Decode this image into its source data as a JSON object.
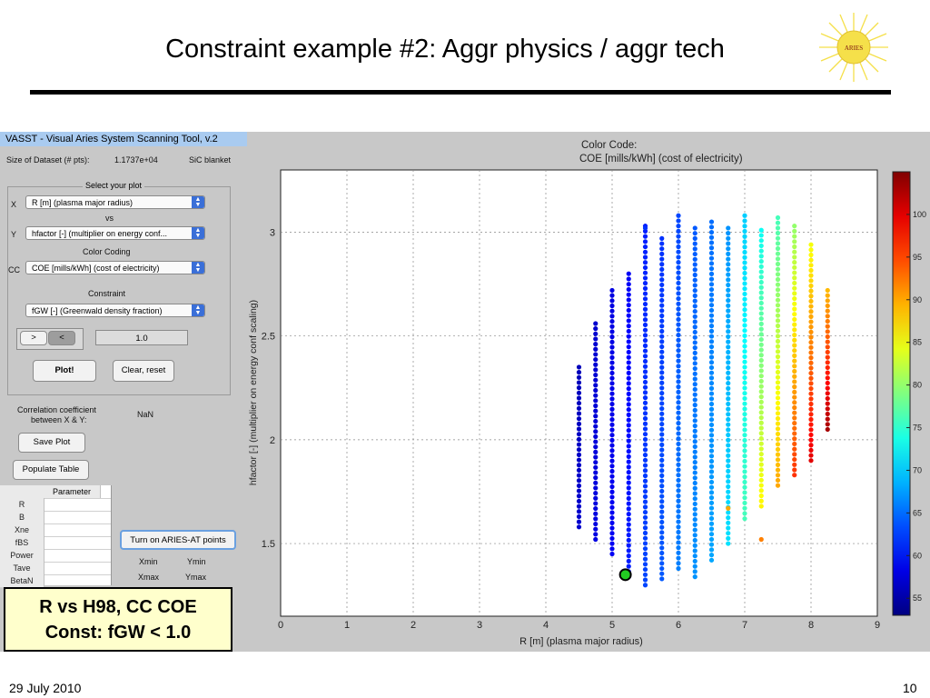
{
  "slide": {
    "title": "Constraint example #2: Aggr physics / aggr tech",
    "logo_text": "ARIES",
    "date": "29 July 2010",
    "page_number": "10",
    "callout_line1": "R vs H98, CC COE",
    "callout_line2": "Const: fGW < 1.0"
  },
  "app": {
    "window_title": "VASST - Visual Aries System Scanning Tool, v.2",
    "dataset_label": "Size of Dataset (# pts):",
    "dataset_value": "1.1737e+04",
    "blanket": "SiC blanket",
    "select_plot_title": "Select your plot",
    "x_label": "X",
    "x_value": "R [m] (plasma major radius)",
    "vs_label": "vs",
    "y_label": "Y",
    "y_value": "hfactor [-] (multiplier on energy conf...",
    "color_coding_label": "Color Coding",
    "cc_label": "CC",
    "cc_value": "COE [mills/kWh] (cost of electricity)",
    "constraint_label": "Constraint",
    "constraint_value": "fGW [-] (Greenwald density fraction)",
    "gt_label": ">",
    "lt_label": "<",
    "constraint_threshold": "1.0",
    "plot_button": "Plot!",
    "clear_button": "Clear, reset",
    "corr_label_1": "Correlation coefficient",
    "corr_label_2": "between X & Y:",
    "corr_value": "NaN",
    "save_plot_button": "Save Plot",
    "populate_table_button": "Populate Table",
    "table_header": "Parameter",
    "table_rows": [
      "R",
      "B",
      "Xne",
      "fBS",
      "Power",
      "Tave",
      "BetaN"
    ],
    "aries_at_button": "Turn on ARIES-AT points",
    "xmin_label": "Xmin",
    "ymin_label": "Ymin",
    "xmax_label": "Xmax",
    "ymax_label": "Ymax"
  },
  "chart_data": {
    "type": "scatter",
    "title": "Color Code:",
    "subtitle": "COE [mills/kWh] (cost of electricity)",
    "xlabel": "R [m] (plasma major radius)",
    "ylabel": "hfactor [-] (multiplier on energy conf scaling)",
    "xlim": [
      0,
      9
    ],
    "ylim": [
      1.15,
      3.3
    ],
    "xticks": [
      0,
      1,
      2,
      3,
      4,
      5,
      6,
      7,
      8,
      9
    ],
    "yticks": [
      1.5,
      2,
      2.5,
      3
    ],
    "grid": true,
    "colorbar": {
      "label": "COE",
      "range": [
        53,
        105
      ],
      "ticks": [
        55,
        60,
        65,
        70,
        75,
        80,
        85,
        90,
        95,
        100
      ]
    },
    "columns": [
      {
        "x": 4.5,
        "ymin": 1.58,
        "ymax": 2.35,
        "coe_low": 56,
        "coe_high": 57
      },
      {
        "x": 4.75,
        "ymin": 1.52,
        "ymax": 2.56,
        "coe_low": 57,
        "coe_high": 58
      },
      {
        "x": 5.0,
        "ymin": 1.45,
        "ymax": 2.72,
        "coe_low": 58,
        "coe_high": 59
      },
      {
        "x": 5.25,
        "ymin": 1.34,
        "ymax": 2.8,
        "coe_low": 59,
        "coe_high": 61
      },
      {
        "x": 5.5,
        "ymin": 1.3,
        "ymax": 3.03,
        "coe_low": 61,
        "coe_high": 63
      },
      {
        "x": 5.75,
        "ymin": 1.33,
        "ymax": 2.97,
        "coe_low": 62,
        "coe_high": 64
      },
      {
        "x": 6.0,
        "ymin": 1.38,
        "ymax": 3.08,
        "coe_low": 63,
        "coe_high": 66
      },
      {
        "x": 6.25,
        "ymin": 1.34,
        "ymax": 3.02,
        "coe_low": 64,
        "coe_high": 67
      },
      {
        "x": 6.5,
        "ymin": 1.42,
        "ymax": 3.05,
        "coe_low": 65,
        "coe_high": 68
      },
      {
        "x": 6.75,
        "ymin": 1.5,
        "ymax": 3.02,
        "coe_low": 67,
        "coe_high": 71
      },
      {
        "x": 7.0,
        "ymin": 1.62,
        "ymax": 3.08,
        "coe_low": 70,
        "coe_high": 76
      },
      {
        "x": 7.25,
        "ymin": 1.68,
        "ymax": 3.01,
        "coe_low": 73,
        "coe_high": 86
      },
      {
        "x": 7.5,
        "ymin": 1.78,
        "ymax": 3.07,
        "coe_low": 76,
        "coe_high": 90
      },
      {
        "x": 7.75,
        "ymin": 1.83,
        "ymax": 3.03,
        "coe_low": 80,
        "coe_high": 96
      },
      {
        "x": 8.0,
        "ymin": 1.9,
        "ymax": 2.94,
        "coe_low": 85,
        "coe_high": 100
      },
      {
        "x": 8.25,
        "ymin": 2.05,
        "ymax": 2.72,
        "coe_low": 89,
        "coe_high": 103
      }
    ],
    "outliers": [
      {
        "x": 5.5,
        "y": 3.02,
        "coe": 62
      },
      {
        "x": 6.75,
        "y": 1.67,
        "coe": 90
      },
      {
        "x": 7.25,
        "y": 1.52,
        "coe": 92
      }
    ],
    "highlight_point": {
      "x": 5.2,
      "y": 1.35,
      "color": "#22cc22"
    }
  }
}
